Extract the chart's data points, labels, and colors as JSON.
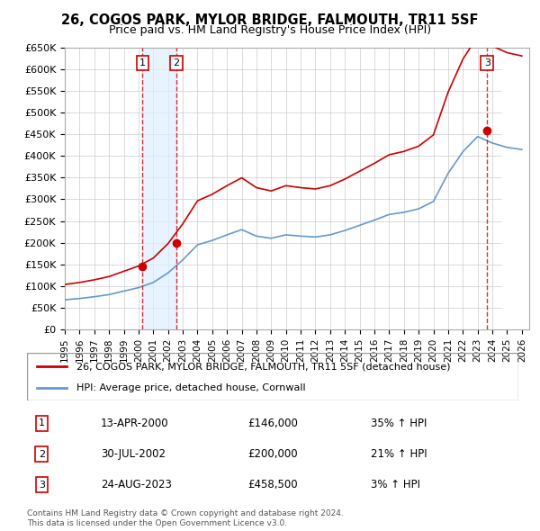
{
  "title": "26, COGOS PARK, MYLOR BRIDGE, FALMOUTH, TR11 5SF",
  "subtitle": "Price paid vs. HM Land Registry's House Price Index (HPI)",
  "ylabel": "",
  "xlabel": "",
  "ylim": [
    0,
    650000
  ],
  "yticks": [
    0,
    50000,
    100000,
    150000,
    200000,
    250000,
    300000,
    350000,
    400000,
    450000,
    500000,
    550000,
    600000,
    650000
  ],
  "ytick_labels": [
    "£0",
    "£50K",
    "£100K",
    "£150K",
    "£200K",
    "£250K",
    "£300K",
    "£350K",
    "£400K",
    "£450K",
    "£500K",
    "£550K",
    "£600K",
    "£650K"
  ],
  "xlim_start": 1995.0,
  "xlim_end": 2026.5,
  "sale1_date": "13-APR-2000",
  "sale1_x": 2000.28,
  "sale1_y": 146000,
  "sale2_date": "30-JUL-2002",
  "sale2_x": 2002.58,
  "sale2_y": 200000,
  "sale3_date": "24-AUG-2023",
  "sale3_x": 2023.65,
  "sale3_y": 458500,
  "hpi_color": "#6699cc",
  "price_color": "#cc0000",
  "marker_color": "#cc0000",
  "vline_color": "#cc0000",
  "shade_color": "#ddeeff",
  "grid_color": "#cccccc",
  "legend_line1": "26, COGOS PARK, MYLOR BRIDGE, FALMOUTH, TR11 5SF (detached house)",
  "legend_line2": "HPI: Average price, detached house, Cornwall",
  "table_rows": [
    {
      "num": "1",
      "date": "13-APR-2000",
      "price": "£146,000",
      "hpi": "35% ↑ HPI"
    },
    {
      "num": "2",
      "date": "30-JUL-2002",
      "price": "£200,000",
      "hpi": "21% ↑ HPI"
    },
    {
      "num": "3",
      "date": "24-AUG-2023",
      "price": "£458,500",
      "hpi": "3% ↑ HPI"
    }
  ],
  "footnote": "Contains HM Land Registry data © Crown copyright and database right 2024.\nThis data is licensed under the Open Government Licence v3.0.",
  "hatch_start": 2024.65,
  "background_color": "#ffffff",
  "plot_bg_color": "#ffffff"
}
